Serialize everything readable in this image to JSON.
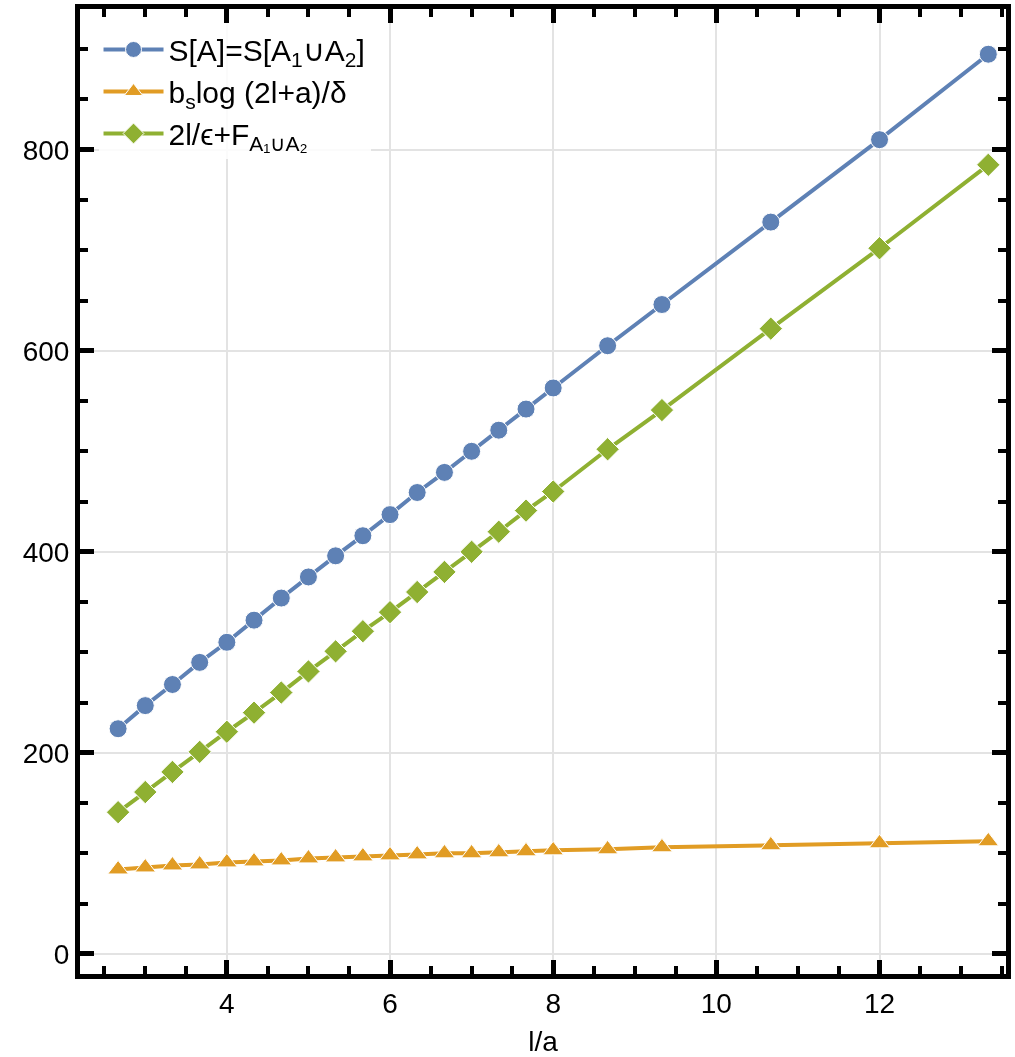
{
  "chart_data": {
    "type": "line",
    "xlabel": "l/a",
    "x": [
      2.667,
      3,
      3.333,
      3.667,
      4,
      4.333,
      4.667,
      5,
      5.333,
      5.667,
      6,
      6.333,
      6.667,
      7,
      7.333,
      7.667,
      8,
      8.667,
      9.333,
      10.667,
      12,
      13.333
    ],
    "series": [
      {
        "name": "S[A]=S[A$_{1}$∪A$_{2}$]",
        "color": "#5e81b5",
        "marker": "circle",
        "values": [
          224,
          247,
          268,
          290,
          310,
          332,
          354,
          375,
          396,
          416,
          437,
          459,
          479,
          500,
          521,
          542,
          563,
          605,
          646,
          728,
          810,
          895
        ]
      },
      {
        "name": "b$_{s}$log (2l+a)/δ",
        "color": "#e19c24",
        "marker": "triangle",
        "values": [
          84,
          86,
          88,
          89,
          91,
          92,
          93,
          95,
          96,
          97,
          98,
          99,
          100,
          100,
          101,
          102,
          103,
          104,
          106,
          108,
          110,
          112
        ]
      },
      {
        "name": "2l/ϵ+F$_{A₁∪A₂}$",
        "color": "#8fb032",
        "marker": "diamond",
        "values": [
          141,
          161,
          181,
          201,
          221,
          240,
          260,
          281,
          301,
          321,
          340,
          360,
          380,
          400,
          420,
          441,
          460,
          502,
          541,
          622,
          702,
          785
        ]
      }
    ],
    "xlim": [
      2.2,
      13.55
    ],
    "ylim": [
      -20,
      940
    ],
    "xticks": [
      4,
      6,
      8,
      10,
      12
    ],
    "yticks": [
      0,
      200,
      400,
      600,
      800
    ],
    "grid": true,
    "legend": "top left",
    "line_style": "solid"
  }
}
